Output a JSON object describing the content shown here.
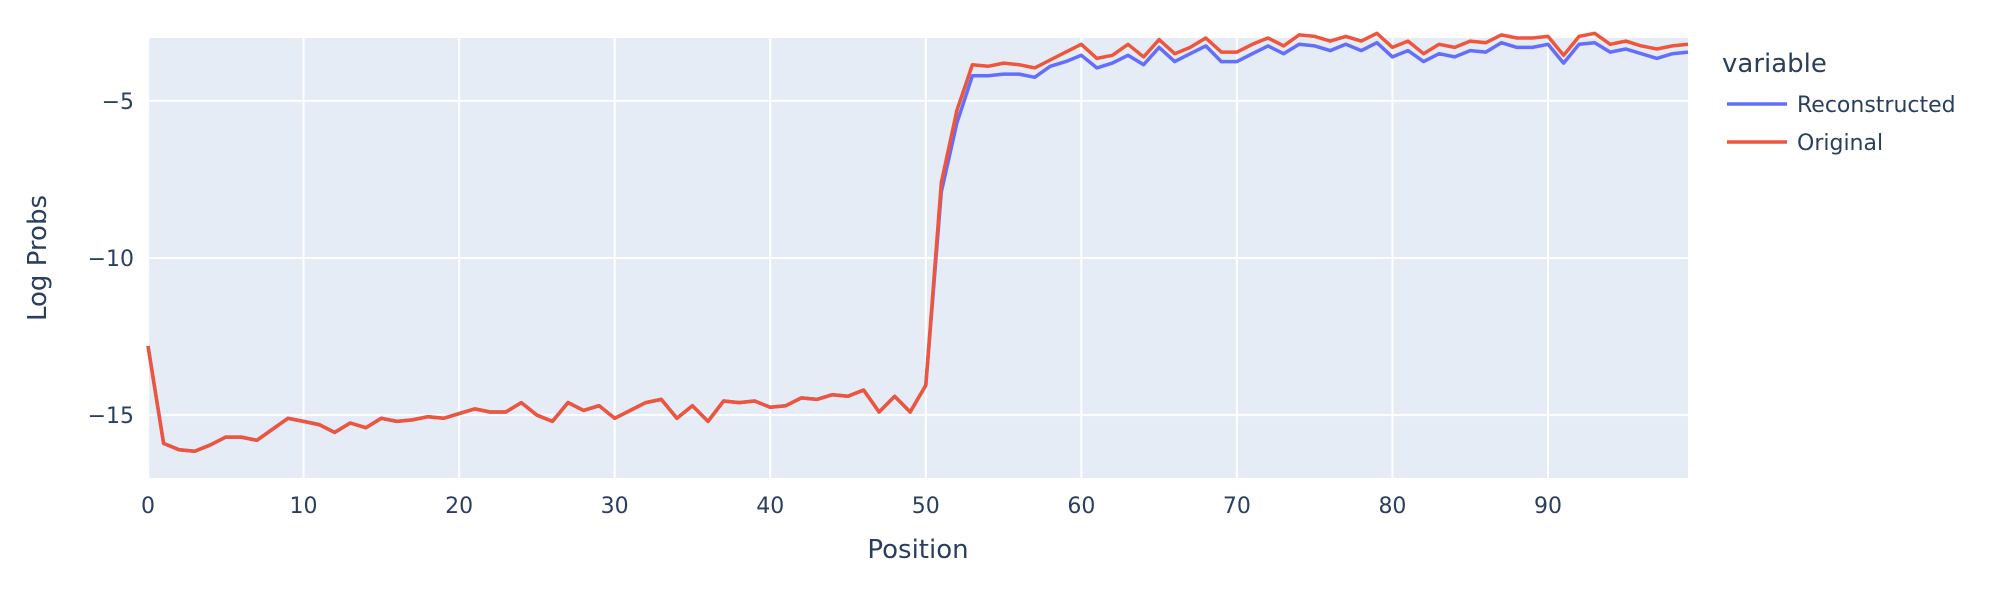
{
  "chart_data": {
    "type": "line",
    "title": "",
    "xlabel": "Position",
    "ylabel": "Log Probs",
    "xlim": [
      0,
      99
    ],
    "ylim": [
      -17,
      -3
    ],
    "x_ticks": [
      0,
      10,
      20,
      30,
      40,
      50,
      60,
      70,
      80,
      90
    ],
    "x_tick_labels": [
      "0",
      "10",
      "20",
      "30",
      "40",
      "50",
      "60",
      "70",
      "80",
      "90"
    ],
    "y_ticks": [
      -15,
      -10,
      -5
    ],
    "y_tick_labels": [
      "−15",
      "−10",
      "−5"
    ],
    "grid": true,
    "legend": {
      "title": "variable",
      "position": "right-top"
    },
    "series": [
      {
        "name": "Reconstructed",
        "color": "#636efa",
        "x": [
          0,
          1,
          2,
          3,
          4,
          5,
          6,
          7,
          8,
          9,
          10,
          11,
          12,
          13,
          14,
          15,
          16,
          17,
          18,
          19,
          20,
          21,
          22,
          23,
          24,
          25,
          26,
          27,
          28,
          29,
          30,
          31,
          32,
          33,
          34,
          35,
          36,
          37,
          38,
          39,
          40,
          41,
          42,
          43,
          44,
          45,
          46,
          47,
          48,
          49,
          50,
          51,
          52,
          53,
          54,
          55,
          56,
          57,
          58,
          59,
          60,
          61,
          62,
          63,
          64,
          65,
          66,
          67,
          68,
          69,
          70,
          71,
          72,
          73,
          74,
          75,
          76,
          77,
          78,
          79,
          80,
          81,
          82,
          83,
          84,
          85,
          86,
          87,
          88,
          89,
          90,
          91,
          92,
          93,
          94,
          95,
          96,
          97,
          98,
          99
        ],
        "y": [
          -12.8,
          -15.9,
          -16.1,
          -16.15,
          -15.95,
          -15.7,
          -15.7,
          -15.8,
          -15.45,
          -15.1,
          -15.2,
          -15.3,
          -15.55,
          -15.25,
          -15.4,
          -15.1,
          -15.2,
          -15.15,
          -15.05,
          -15.1,
          -14.95,
          -14.8,
          -14.9,
          -14.9,
          -14.6,
          -15.0,
          -15.2,
          -14.6,
          -14.85,
          -14.7,
          -15.1,
          -14.85,
          -14.6,
          -14.5,
          -15.1,
          -14.7,
          -15.2,
          -14.55,
          -14.6,
          -14.55,
          -14.75,
          -14.7,
          -14.45,
          -14.5,
          -14.35,
          -14.4,
          -14.2,
          -14.9,
          -14.4,
          -14.9,
          -14.05,
          -7.9,
          -5.7,
          -4.2,
          -4.2,
          -4.15,
          -4.15,
          -4.25,
          -3.9,
          -3.75,
          -3.55,
          -3.95,
          -3.8,
          -3.55,
          -3.85,
          -3.3,
          -3.75,
          -3.5,
          -3.25,
          -3.75,
          -3.75,
          -3.5,
          -3.25,
          -3.5,
          -3.2,
          -3.25,
          -3.4,
          -3.2,
          -3.4,
          -3.15,
          -3.6,
          -3.4,
          -3.75,
          -3.5,
          -3.6,
          -3.4,
          -3.45,
          -3.15,
          -3.3,
          -3.3,
          -3.2,
          -3.8,
          -3.2,
          -3.15,
          -3.45,
          -3.35,
          -3.5,
          -3.65,
          -3.5,
          -3.45
        ]
      },
      {
        "name": "Original",
        "color": "#ef553b",
        "x": [
          0,
          1,
          2,
          3,
          4,
          5,
          6,
          7,
          8,
          9,
          10,
          11,
          12,
          13,
          14,
          15,
          16,
          17,
          18,
          19,
          20,
          21,
          22,
          23,
          24,
          25,
          26,
          27,
          28,
          29,
          30,
          31,
          32,
          33,
          34,
          35,
          36,
          37,
          38,
          39,
          40,
          41,
          42,
          43,
          44,
          45,
          46,
          47,
          48,
          49,
          50,
          51,
          52,
          53,
          54,
          55,
          56,
          57,
          58,
          59,
          60,
          61,
          62,
          63,
          64,
          65,
          66,
          67,
          68,
          69,
          70,
          71,
          72,
          73,
          74,
          75,
          76,
          77,
          78,
          79,
          80,
          81,
          82,
          83,
          84,
          85,
          86,
          87,
          88,
          89,
          90,
          91,
          92,
          93,
          94,
          95,
          96,
          97,
          98,
          99
        ],
        "y": [
          -12.8,
          -15.9,
          -16.1,
          -16.15,
          -15.95,
          -15.7,
          -15.7,
          -15.8,
          -15.45,
          -15.1,
          -15.2,
          -15.3,
          -15.55,
          -15.25,
          -15.4,
          -15.1,
          -15.2,
          -15.15,
          -15.05,
          -15.1,
          -14.95,
          -14.8,
          -14.9,
          -14.9,
          -14.6,
          -15.0,
          -15.2,
          -14.6,
          -14.85,
          -14.7,
          -15.1,
          -14.85,
          -14.6,
          -14.5,
          -15.1,
          -14.7,
          -15.2,
          -14.55,
          -14.6,
          -14.55,
          -14.75,
          -14.7,
          -14.45,
          -14.5,
          -14.35,
          -14.4,
          -14.2,
          -14.9,
          -14.4,
          -14.9,
          -14.05,
          -7.6,
          -5.3,
          -3.85,
          -3.9,
          -3.8,
          -3.85,
          -3.95,
          -3.7,
          -3.45,
          -3.2,
          -3.65,
          -3.55,
          -3.2,
          -3.6,
          -3.05,
          -3.5,
          -3.3,
          -3.0,
          -3.45,
          -3.45,
          -3.2,
          -3.0,
          -3.25,
          -2.9,
          -2.95,
          -3.1,
          -2.95,
          -3.1,
          -2.85,
          -3.3,
          -3.1,
          -3.5,
          -3.2,
          -3.3,
          -3.1,
          -3.15,
          -2.9,
          -3.0,
          -3.0,
          -2.95,
          -3.55,
          -2.95,
          -2.85,
          -3.2,
          -3.1,
          -3.25,
          -3.35,
          -3.25,
          -3.2
        ]
      }
    ]
  }
}
